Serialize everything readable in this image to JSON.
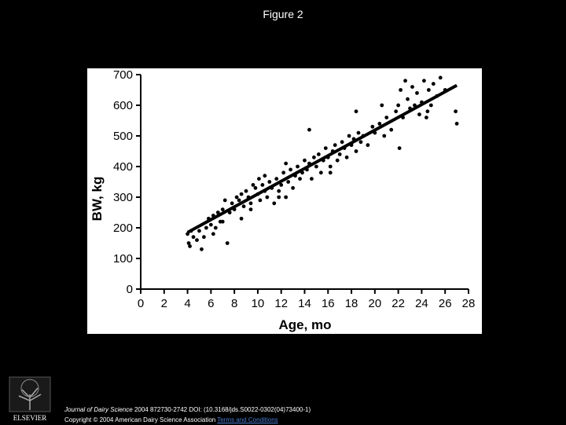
{
  "slide": {
    "title": "Figure 2"
  },
  "footer": {
    "journal": "Journal of Dairy Science",
    "citation": "2004 872730-2742 DOI: (10.3168/jds.S0022-0302(04)73400-1)",
    "copyright": "Copyright © 2004 American Dairy Science Association",
    "terms_link": "Terms and Conditions",
    "logo_text": "ELSEVIER"
  },
  "chart_data": {
    "type": "scatter",
    "xlabel": "Age, mo",
    "ylabel": "BW, kg",
    "xlim": [
      0,
      28
    ],
    "ylim": [
      0,
      700
    ],
    "xticks": [
      0,
      2,
      4,
      6,
      8,
      10,
      12,
      14,
      16,
      18,
      20,
      22,
      24,
      26,
      28
    ],
    "yticks": [
      0,
      100,
      200,
      300,
      400,
      500,
      600,
      700
    ],
    "grid": false,
    "series": [
      {
        "values_xy": [
          [
            4.0,
            180
          ],
          [
            4.1,
            150
          ],
          [
            4.2,
            140
          ],
          [
            4.3,
            190
          ],
          [
            4.5,
            170
          ],
          [
            4.8,
            160
          ],
          [
            5.0,
            190
          ],
          [
            5.2,
            130
          ],
          [
            5.4,
            170
          ],
          [
            5.6,
            200
          ],
          [
            5.8,
            230
          ],
          [
            6.0,
            210
          ],
          [
            6.2,
            240
          ],
          [
            6.4,
            200
          ],
          [
            6.6,
            250
          ],
          [
            6.8,
            220
          ],
          [
            7.0,
            260
          ],
          [
            7.2,
            290
          ],
          [
            7.4,
            150
          ],
          [
            7.6,
            250
          ],
          [
            7.8,
            280
          ],
          [
            8.0,
            260
          ],
          [
            8.2,
            300
          ],
          [
            8.4,
            290
          ],
          [
            8.6,
            310
          ],
          [
            8.8,
            270
          ],
          [
            9.0,
            320
          ],
          [
            9.2,
            300
          ],
          [
            9.4,
            280
          ],
          [
            9.6,
            340
          ],
          [
            9.8,
            330
          ],
          [
            10.0,
            310
          ],
          [
            10.1,
            360
          ],
          [
            10.2,
            290
          ],
          [
            10.4,
            340
          ],
          [
            10.6,
            320
          ],
          [
            10.8,
            300
          ],
          [
            11.0,
            350
          ],
          [
            11.2,
            330
          ],
          [
            11.4,
            280
          ],
          [
            11.6,
            360
          ],
          [
            11.8,
            320
          ],
          [
            12.0,
            340
          ],
          [
            12.2,
            380
          ],
          [
            12.4,
            300
          ],
          [
            12.6,
            350
          ],
          [
            12.8,
            390
          ],
          [
            13.0,
            330
          ],
          [
            13.2,
            370
          ],
          [
            13.4,
            400
          ],
          [
            13.6,
            360
          ],
          [
            13.8,
            380
          ],
          [
            14.0,
            420
          ],
          [
            14.2,
            390
          ],
          [
            14.4,
            410
          ],
          [
            14.6,
            360
          ],
          [
            14.8,
            430
          ],
          [
            15.0,
            400
          ],
          [
            15.2,
            440
          ],
          [
            15.4,
            380
          ],
          [
            15.6,
            420
          ],
          [
            15.8,
            460
          ],
          [
            16.0,
            430
          ],
          [
            16.2,
            400
          ],
          [
            16.4,
            450
          ],
          [
            16.6,
            470
          ],
          [
            16.8,
            420
          ],
          [
            17.0,
            440
          ],
          [
            17.2,
            480
          ],
          [
            17.4,
            460
          ],
          [
            17.6,
            430
          ],
          [
            17.8,
            500
          ],
          [
            18.0,
            470
          ],
          [
            18.2,
            490
          ],
          [
            18.4,
            450
          ],
          [
            18.6,
            510
          ],
          [
            18.8,
            480
          ],
          [
            19.0,
            500
          ],
          [
            19.4,
            470
          ],
          [
            19.8,
            530
          ],
          [
            20.0,
            510
          ],
          [
            20.4,
            540
          ],
          [
            20.8,
            500
          ],
          [
            21.0,
            560
          ],
          [
            21.4,
            520
          ],
          [
            21.8,
            580
          ],
          [
            22.0,
            600
          ],
          [
            22.2,
            650
          ],
          [
            22.4,
            560
          ],
          [
            22.6,
            680
          ],
          [
            22.8,
            620
          ],
          [
            23.0,
            590
          ],
          [
            23.2,
            660
          ],
          [
            23.4,
            600
          ],
          [
            23.6,
            640
          ],
          [
            23.8,
            570
          ],
          [
            24.0,
            610
          ],
          [
            24.2,
            680
          ],
          [
            24.4,
            560
          ],
          [
            24.6,
            650
          ],
          [
            24.8,
            600
          ],
          [
            25.0,
            670
          ],
          [
            25.3,
            630
          ],
          [
            25.6,
            690
          ],
          [
            26.0,
            650
          ],
          [
            22.1,
            460
          ],
          [
            24.5,
            580
          ],
          [
            26.9,
            580
          ],
          [
            27.0,
            540
          ],
          [
            14.4,
            520
          ],
          [
            16.2,
            380
          ],
          [
            18.4,
            580
          ],
          [
            20.6,
            600
          ],
          [
            12.4,
            410
          ],
          [
            10.6,
            370
          ],
          [
            8.6,
            230
          ],
          [
            6.2,
            180
          ],
          [
            7.0,
            220
          ],
          [
            9.4,
            260
          ],
          [
            11.8,
            300
          ]
        ]
      }
    ],
    "trend_line": {
      "x": [
        4,
        27
      ],
      "y": [
        185,
        665
      ]
    }
  }
}
